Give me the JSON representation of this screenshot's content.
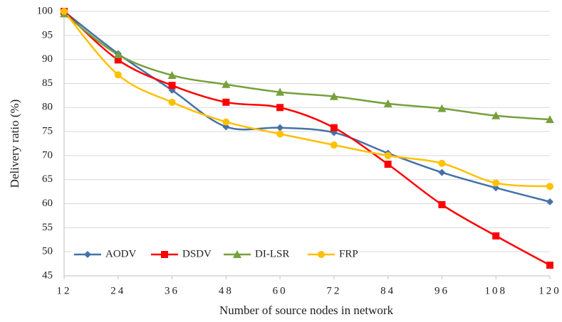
{
  "chart_data": {
    "type": "line",
    "xlabel": "Number of source nodes in network",
    "ylabel": "Delivery ratio (%)",
    "x": [
      12,
      24,
      36,
      48,
      60,
      72,
      84,
      96,
      108,
      120
    ],
    "xlim": [
      12,
      120
    ],
    "xticks": [
      12,
      24,
      36,
      48,
      60,
      72,
      84,
      96,
      108,
      120
    ],
    "ylim": [
      45,
      100
    ],
    "yticks": [
      45,
      50,
      55,
      60,
      65,
      70,
      75,
      80,
      85,
      90,
      95,
      100
    ],
    "grid": true,
    "legend": "lower left",
    "series": [
      {
        "name": "AODV",
        "color": "#4472a8",
        "marker": "diamond",
        "values": [
          100,
          91.2,
          83.6,
          76.0,
          75.8,
          74.8,
          70.5,
          66.5,
          63.3,
          60.4
        ]
      },
      {
        "name": "DSDV",
        "color": "#ff0000",
        "marker": "square",
        "values": [
          100,
          89.9,
          84.6,
          81.1,
          80.0,
          75.8,
          68.2,
          59.8,
          53.3,
          47.2
        ]
      },
      {
        "name": "DI-LSR",
        "color": "#77a03c",
        "marker": "triangle",
        "values": [
          99.5,
          91.0,
          86.7,
          84.8,
          83.2,
          82.3,
          80.8,
          79.8,
          78.3,
          77.5
        ]
      },
      {
        "name": "FRP",
        "color": "#ffc000",
        "marker": "circle",
        "values": [
          100,
          86.8,
          81.1,
          77.0,
          74.5,
          72.2,
          70.0,
          68.4,
          64.3,
          63.6
        ]
      }
    ]
  }
}
